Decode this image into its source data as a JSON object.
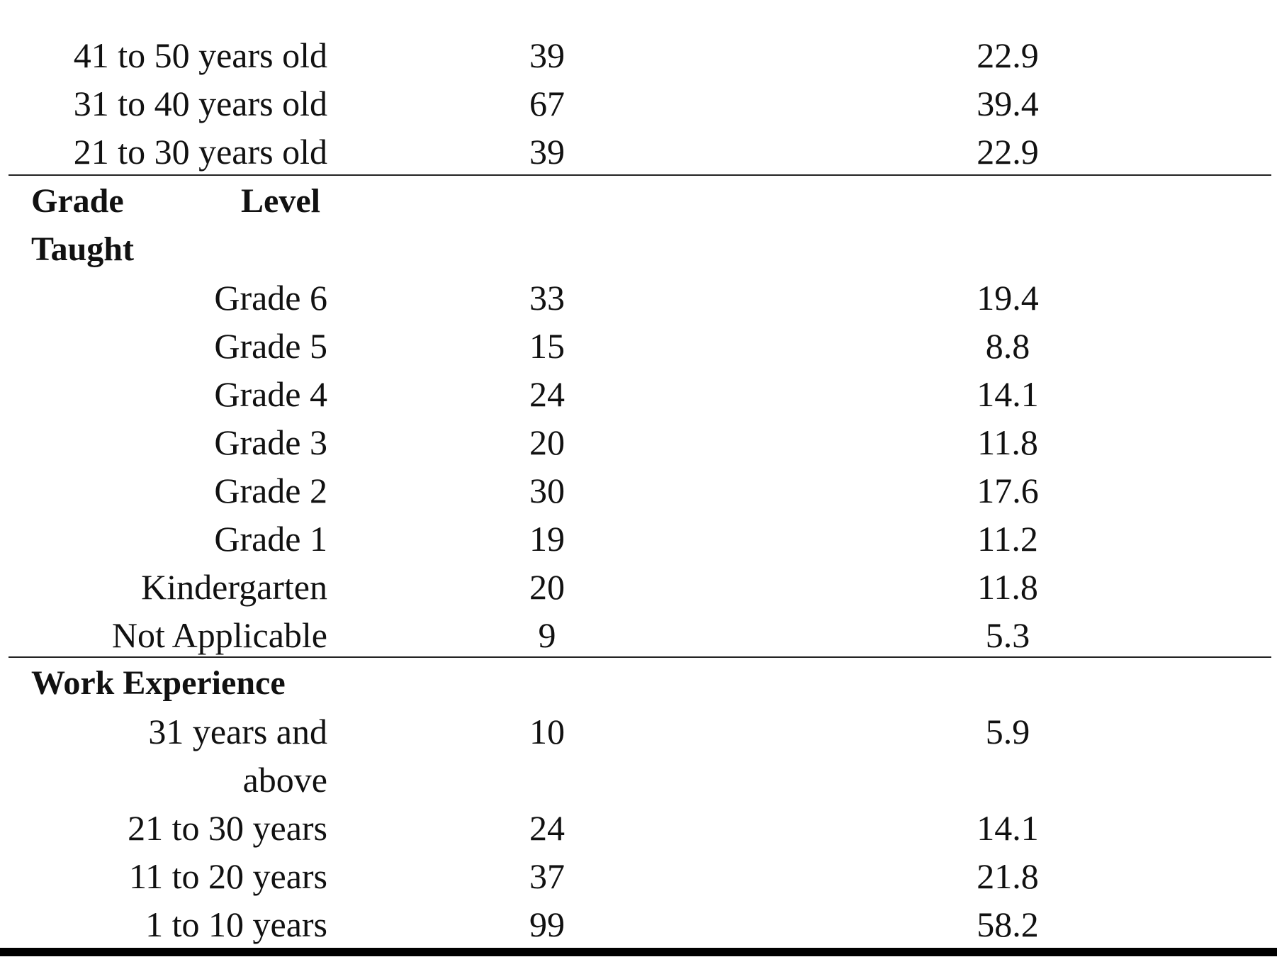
{
  "age_rows": [
    {
      "label": "41 to 50 years old",
      "n": "39",
      "pct": "22.9"
    },
    {
      "label": "31 to 40 years old",
      "n": "67",
      "pct": "39.4"
    },
    {
      "label": "21 to 30 years old",
      "n": "39",
      "pct": "22.9"
    }
  ],
  "grade_section": {
    "heading_word1": "Grade",
    "heading_word2": "Level",
    "heading_word3": "Taught",
    "rows": [
      {
        "label": "Grade 6",
        "n": "33",
        "pct": "19.4"
      },
      {
        "label": "Grade 5",
        "n": "15",
        "pct": "8.8"
      },
      {
        "label": "Grade 4",
        "n": "24",
        "pct": "14.1"
      },
      {
        "label": "Grade 3",
        "n": "20",
        "pct": "11.8"
      },
      {
        "label": "Grade 2",
        "n": "30",
        "pct": "17.6"
      },
      {
        "label": "Grade 1",
        "n": "19",
        "pct": "11.2"
      },
      {
        "label": "Kindergarten",
        "n": "20",
        "pct": "11.8"
      },
      {
        "label": "Not Applicable",
        "n": "9",
        "pct": "5.3"
      }
    ]
  },
  "work_section": {
    "heading": "Work Experience",
    "rows": [
      {
        "label_line1": "31 years and",
        "label_line2": "above",
        "n": "10",
        "pct": "5.9"
      },
      {
        "label": "21 to 30 years",
        "n": "24",
        "pct": "14.1"
      },
      {
        "label": "11 to 20 years",
        "n": "37",
        "pct": "21.8"
      },
      {
        "label": "1 to 10 years",
        "n": "99",
        "pct": "58.2"
      }
    ]
  }
}
